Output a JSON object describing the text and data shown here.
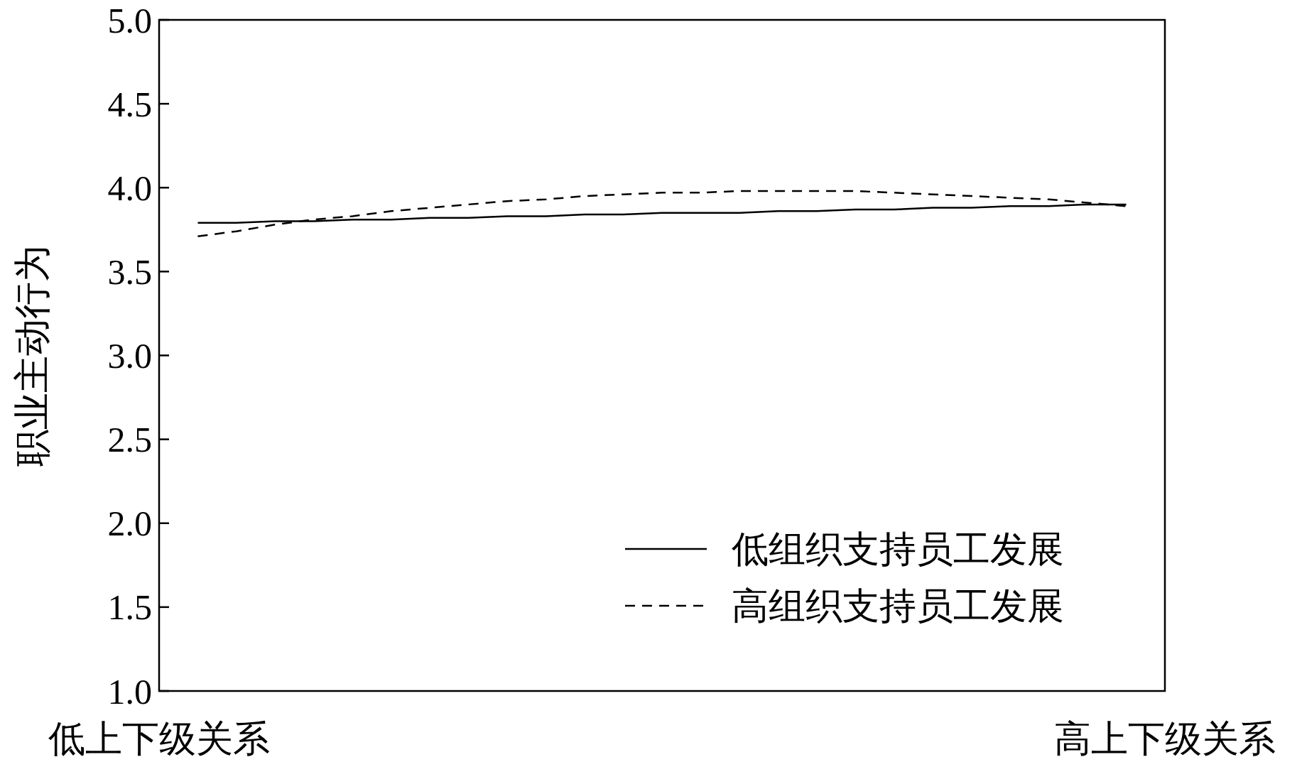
{
  "chart_data": {
    "type": "line",
    "ylabel": "职业主动行为",
    "categories": [
      "低上下级关系",
      null,
      null,
      null,
      null,
      null,
      null,
      null,
      null,
      null,
      null,
      null,
      null,
      null,
      null,
      null,
      null,
      null,
      null,
      null,
      null,
      null,
      null,
      null,
      null,
      null,
      "高上下级关系"
    ],
    "ylim": [
      1.0,
      5.0
    ],
    "yticks": [
      {
        "value": 1,
        "label": "1.0"
      },
      {
        "value": 1.5,
        "label": "1.5"
      },
      {
        "value": 2,
        "label": "2.0"
      },
      {
        "value": 2.5,
        "label": "2.5"
      },
      {
        "value": 3,
        "label": "3.0"
      },
      {
        "value": 3.5,
        "label": "3.5"
      },
      {
        "value": 4,
        "label": "4.0"
      },
      {
        "value": 4.5,
        "label": "4.5"
      },
      {
        "value": 5,
        "label": "5.0"
      }
    ],
    "grid": false,
    "legend": "bottom right",
    "marker": "none",
    "series": [
      {
        "name": "低组织支持员工发展",
        "color": "#000000",
        "line_style": "solid",
        "values": [
          null,
          3.79,
          3.79,
          3.8,
          3.8,
          3.81,
          3.81,
          3.82,
          3.82,
          3.83,
          3.83,
          3.84,
          3.84,
          3.85,
          3.85,
          3.85,
          3.86,
          3.86,
          3.87,
          3.87,
          3.88,
          3.88,
          3.89,
          3.89,
          3.9,
          3.9,
          null
        ]
      },
      {
        "name": "高组织支持员工发展",
        "color": "#000000",
        "line_style": "dashed",
        "values": [
          null,
          3.71,
          3.74,
          3.78,
          3.81,
          3.83,
          3.86,
          3.88,
          3.9,
          3.92,
          3.93,
          3.95,
          3.96,
          3.97,
          3.97,
          3.98,
          3.98,
          3.98,
          3.98,
          3.97,
          3.96,
          3.95,
          3.94,
          3.93,
          3.91,
          3.89,
          null
        ]
      }
    ]
  }
}
